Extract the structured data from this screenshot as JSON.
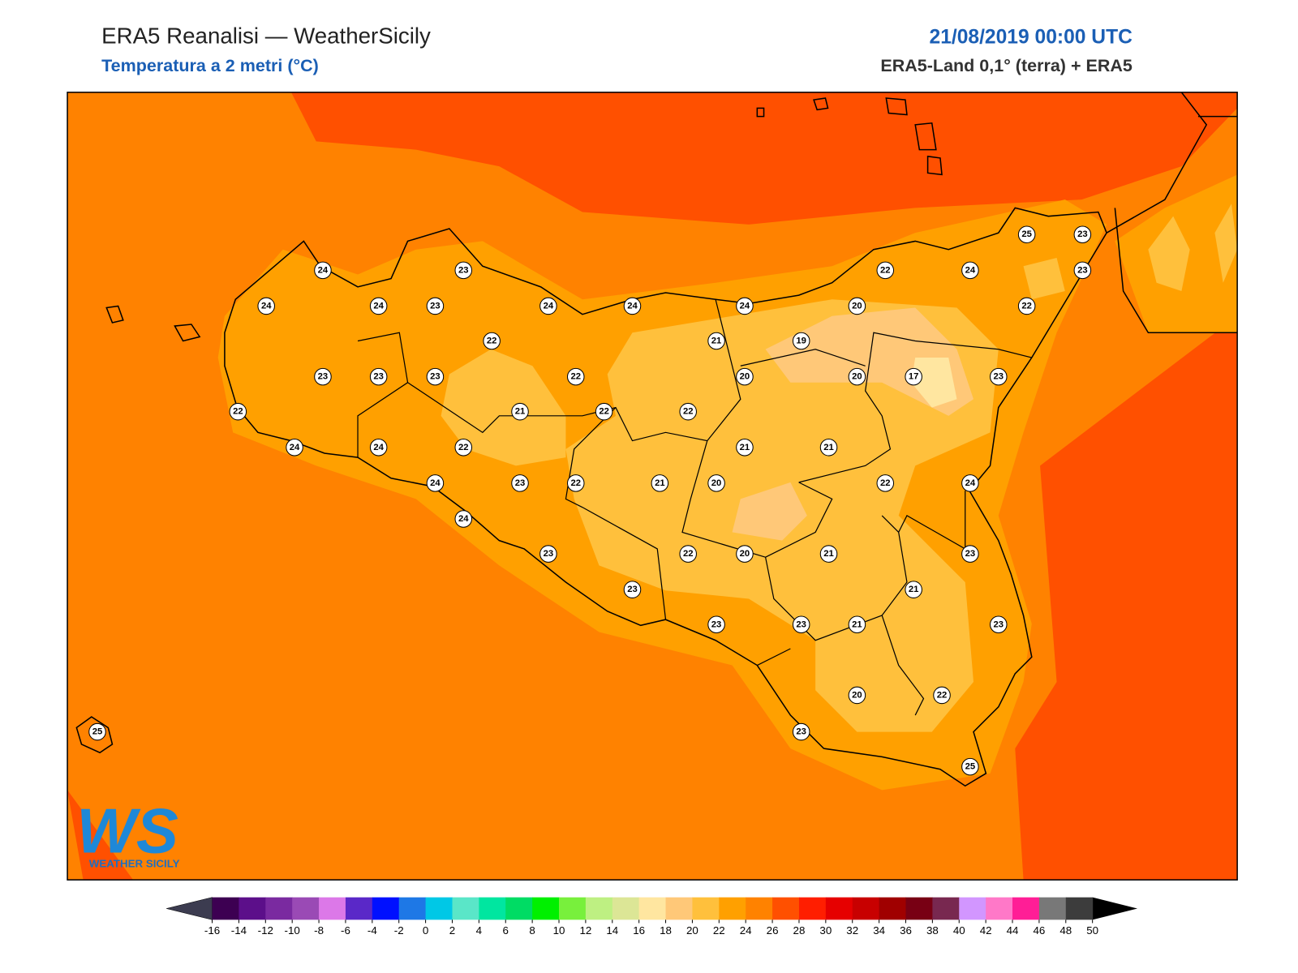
{
  "header": {
    "title": "ERA5 Reanalisi — WeatherSicily",
    "subtitle": "Temperatura a 2 metri (°C)",
    "date": "21/08/2019 00:00 UTC",
    "source": "ERA5-Land 0,1° (terra) + ERA5"
  },
  "logo": {
    "text": "WS",
    "subtitle": "WEATHER SICILY"
  },
  "stations": [
    24,
    23,
    22,
    24,
    25,
    23,
    23,
    24,
    24,
    23,
    24,
    24,
    24,
    20,
    22,
    22,
    21,
    19,
    23,
    23,
    23,
    22,
    20,
    20,
    17,
    23,
    22,
    21,
    22,
    22,
    24,
    24,
    22,
    21,
    21,
    24,
    23,
    22,
    21,
    20,
    22,
    24,
    24,
    23,
    22,
    20,
    21,
    23,
    21,
    23,
    23,
    23,
    21,
    23,
    20,
    22,
    25,
    23,
    25
  ],
  "colorbar": {
    "ticks": [
      -16,
      -14,
      -12,
      -10,
      -8,
      -6,
      -4,
      -2,
      0,
      2,
      4,
      6,
      8,
      10,
      12,
      14,
      16,
      18,
      20,
      22,
      24,
      26,
      28,
      30,
      32,
      34,
      36,
      38,
      40,
      42,
      44,
      46,
      48,
      50
    ],
    "colors": [
      "#3d0052",
      "#5c0f8a",
      "#7a2aa0",
      "#9a4ab5",
      "#dc78e8",
      "#5a28c8",
      "#0010ff",
      "#1e78e6",
      "#00c8e6",
      "#5ae6c8",
      "#00e6a0",
      "#00dc64",
      "#00f000",
      "#78f03c",
      "#bef082",
      "#dce696",
      "#ffe6a0",
      "#ffc878",
      "#ffc03c",
      "#ffa000",
      "#ff8200",
      "#ff5000",
      "#ff1e00",
      "#e60000",
      "#c80000",
      "#a00000",
      "#780014",
      "#782850",
      "#d296ff",
      "#ff78c8",
      "#ff1e96",
      "#787878",
      "#3c3c3c"
    ],
    "under": "#3c3c50",
    "over": "#000000"
  }
}
